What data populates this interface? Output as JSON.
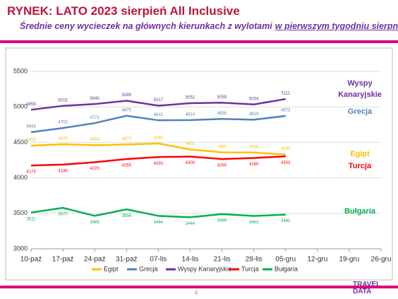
{
  "chart_data": {
    "type": "line",
    "title": "RYNEK: LATO 2023 sierpień All Inclusive",
    "subtitle": [
      "Średnie ceny wycieczek na głównych kierunkach z wylotami",
      "w pierwszym tygodniu sierpnia"
    ],
    "categories": [
      "10-paź",
      "17-paź",
      "24-paź",
      "31-paź",
      "07-lis",
      "14-lis",
      "21-lis",
      "28-lis",
      "05-gru",
      "12-gru",
      "19-gru",
      "26-gru"
    ],
    "series": [
      {
        "name": "Egipt",
        "color": "#ffc000",
        "values": [
          4453,
          4474,
          4459,
          4470,
          4484,
          4401,
          4360,
          4356,
          4330,
          null,
          null,
          null
        ]
      },
      {
        "name": "Grecja",
        "color": "#4f81bd",
        "values": [
          4643,
          4702,
          4771,
          4875,
          4811,
          4814,
          4830,
          4819,
          4873,
          null,
          null,
          null
        ]
      },
      {
        "name": "Wyspy Kanaryjskie",
        "color": "#7030a0",
        "values": [
          4959,
          5015,
          5040,
          5086,
          5017,
          5052,
          5059,
          5034,
          5111,
          null,
          null,
          null
        ]
      },
      {
        "name": "Turcja",
        "color": "#ff0000",
        "values": [
          4174,
          4186,
          4220,
          4265,
          4293,
          4300,
          4265,
          4280,
          4303,
          null,
          null,
          null
        ]
      },
      {
        "name": "Bułgaria",
        "color": "#00b050",
        "values": [
          3511,
          3577,
          3465,
          3556,
          3464,
          3444,
          3489,
          3463,
          3482,
          null,
          null,
          null
        ]
      }
    ],
    "ylim": [
      3000,
      5500
    ],
    "yticks": [
      3000,
      3500,
      4000,
      4500,
      5000,
      5500
    ],
    "grid": true,
    "page_number": "6",
    "logo": "TRAVEL DATA"
  }
}
